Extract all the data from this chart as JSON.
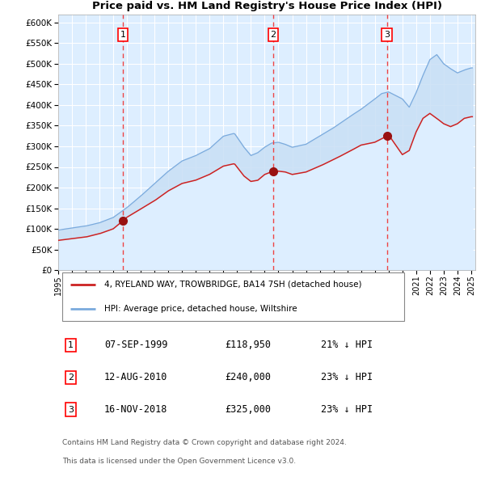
{
  "title": "4, RYELAND WAY, TROWBRIDGE, BA14 7SH",
  "subtitle": "Price paid vs. HM Land Registry's House Price Index (HPI)",
  "plot_bg_color": "#ddeeff",
  "grid_color": "#ffffff",
  "hpi_line_color": "#7aaadd",
  "hpi_fill_color": "#c8dff5",
  "price_line_color": "#cc2222",
  "marker_color": "#991111",
  "dashed_line_color": "#ee4444",
  "ylim": [
    0,
    620000
  ],
  "yticks": [
    0,
    50000,
    100000,
    150000,
    200000,
    250000,
    300000,
    350000,
    400000,
    450000,
    500000,
    550000,
    600000
  ],
  "sale1_year": 1999.69,
  "sale1_price": 118950,
  "sale1_label": "1",
  "sale2_year": 2010.62,
  "sale2_price": 240000,
  "sale2_label": "2",
  "sale3_year": 2018.88,
  "sale3_price": 325000,
  "sale3_label": "3",
  "legend_label1": "4, RYELAND WAY, TROWBRIDGE, BA14 7SH (detached house)",
  "legend_label2": "HPI: Average price, detached house, Wiltshire",
  "footer1": "Contains HM Land Registry data © Crown copyright and database right 2024.",
  "footer2": "This data is licensed under the Open Government Licence v3.0.",
  "table_rows": [
    {
      "num": "1",
      "date": "07-SEP-1999",
      "price": "£118,950",
      "pct": "21% ↓ HPI"
    },
    {
      "num": "2",
      "date": "12-AUG-2010",
      "price": "£240,000",
      "pct": "23% ↓ HPI"
    },
    {
      "num": "3",
      "date": "16-NOV-2018",
      "price": "£325,000",
      "pct": "23% ↓ HPI"
    }
  ],
  "hpi_anchors_x": [
    1995.0,
    1996.0,
    1997.0,
    1998.0,
    1999.0,
    2000.0,
    2001.0,
    2002.0,
    2003.0,
    2004.0,
    2005.0,
    2006.0,
    2007.0,
    2007.8,
    2008.5,
    2009.0,
    2009.5,
    2010.0,
    2010.5,
    2011.0,
    2011.5,
    2012.0,
    2013.0,
    2014.0,
    2015.0,
    2016.0,
    2017.0,
    2018.0,
    2018.5,
    2019.0,
    2020.0,
    2020.5,
    2021.0,
    2021.5,
    2022.0,
    2022.5,
    2023.0,
    2023.5,
    2024.0,
    2024.5,
    2025.0
  ],
  "hpi_anchors_y": [
    97000,
    102000,
    107000,
    115000,
    128000,
    152000,
    180000,
    210000,
    240000,
    265000,
    278000,
    295000,
    325000,
    332000,
    298000,
    278000,
    285000,
    298000,
    308000,
    310000,
    305000,
    298000,
    305000,
    325000,
    345000,
    368000,
    390000,
    415000,
    428000,
    432000,
    415000,
    395000,
    430000,
    472000,
    510000,
    522000,
    500000,
    488000,
    478000,
    485000,
    490000
  ],
  "price_anchors_x": [
    1995.0,
    1996.0,
    1997.0,
    1998.0,
    1999.0,
    1999.69,
    2000.0,
    2001.0,
    2002.0,
    2003.0,
    2004.0,
    2005.0,
    2006.0,
    2007.0,
    2007.8,
    2008.5,
    2009.0,
    2009.5,
    2010.0,
    2010.62,
    2011.0,
    2011.5,
    2012.0,
    2013.0,
    2014.0,
    2015.0,
    2016.0,
    2017.0,
    2018.0,
    2018.88,
    2019.0,
    2020.0,
    2020.5,
    2021.0,
    2021.5,
    2022.0,
    2022.5,
    2023.0,
    2023.5,
    2024.0,
    2024.5,
    2025.0
  ],
  "price_anchors_y": [
    72000,
    76000,
    80000,
    88000,
    100000,
    118950,
    128000,
    148000,
    168000,
    192000,
    210000,
    218000,
    232000,
    252000,
    258000,
    228000,
    215000,
    218000,
    232000,
    240000,
    240000,
    238000,
    232000,
    238000,
    252000,
    268000,
    285000,
    303000,
    310000,
    325000,
    328000,
    280000,
    290000,
    335000,
    368000,
    380000,
    368000,
    355000,
    348000,
    355000,
    368000,
    372000
  ]
}
